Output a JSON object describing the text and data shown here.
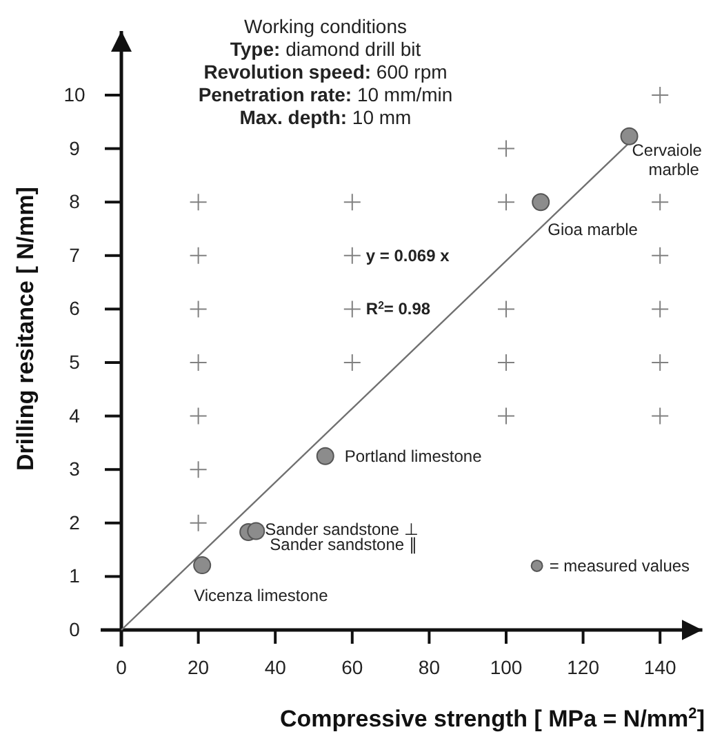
{
  "chart_data": {
    "type": "scatter",
    "xlabel": "Compressive strength [ MPa  = N/mm$^{2}$]",
    "ylabel": "Drilling resitance [ N/mm]",
    "xlim": [
      0,
      151
    ],
    "ylim": [
      0,
      11.2
    ],
    "xticks": [
      0,
      20,
      40,
      60,
      80,
      100,
      120,
      140
    ],
    "yticks": [
      0,
      1,
      2,
      3,
      4,
      5,
      6,
      7,
      8,
      9,
      10
    ],
    "grid": false,
    "legend": "bottom right",
    "series": [
      {
        "type": "scatter",
        "marker": "cross",
        "color": "#808080",
        "x": [
          20,
          20,
          20,
          20,
          20,
          20,
          20,
          60,
          60,
          60,
          60,
          100,
          100,
          100,
          100,
          100,
          140,
          140,
          140,
          140,
          140,
          140
        ],
        "values": [
          2,
          3,
          4,
          5,
          6,
          7,
          8,
          5,
          6,
          7,
          8,
          4,
          5,
          6,
          8,
          9,
          4,
          5,
          6,
          7,
          8,
          10
        ]
      },
      {
        "type": "line",
        "color": "#707070",
        "x": [
          0,
          132
        ],
        "values": [
          0,
          9.11
        ]
      },
      {
        "type": "scatter",
        "marker": "circle",
        "name": "= measured values",
        "color": "#8c8c8c",
        "x": [
          21,
          33,
          35,
          53,
          109,
          132
        ],
        "values": [
          1.21,
          1.83,
          1.85,
          3.25,
          8.0,
          9.23
        ]
      }
    ],
    "annotations": [
      "Working conditions",
      "Type: diamond drill bit",
      "Revolution speed: 600 rpm",
      "Penetration rate: 10 mm/min",
      "Max. depth: 10 mm",
      {
        "text": "Vicenza limestone",
        "x": 21,
        "y": 1.21
      },
      {
        "text": "Sander sandstone ⊥",
        "x": 33,
        "y": 1.83
      },
      {
        "text": "Sander sandstone ∥",
        "x": 35,
        "y": 1.85
      },
      {
        "text": "Portland limestone",
        "x": 53,
        "y": 3.25
      },
      {
        "text": "Gioa marble",
        "x": 109,
        "y": 8.0
      },
      {
        "text": "Cervaiole marble",
        "x": 132,
        "y": 9.23
      },
      "y = 0.069 x",
      "R$^{2}$= 0.98"
    ]
  }
}
